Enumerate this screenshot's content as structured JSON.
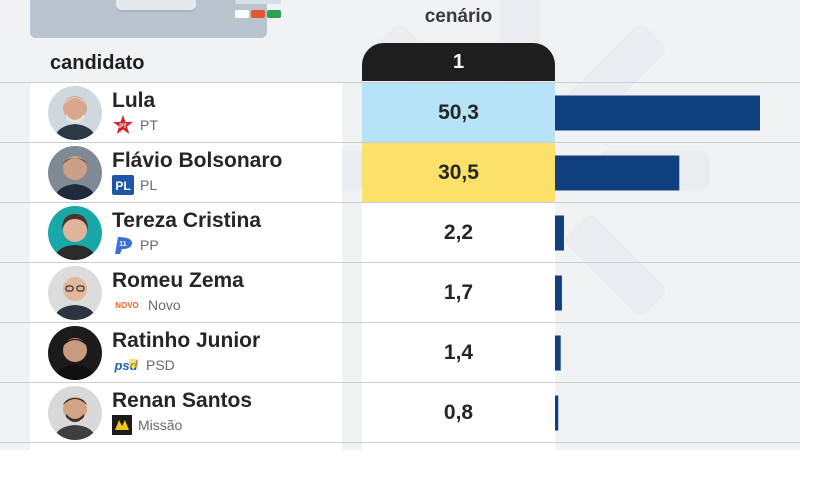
{
  "header": {
    "scenario_title": "cenário",
    "scenario_number": "1",
    "candidate_header": "candidato"
  },
  "colors": {
    "bar": "#0f3f7e",
    "leader_highlight": "#b6e3f8",
    "second_highlight": "#fbe06a",
    "badge": "#1e1e1e"
  },
  "rows": [
    {
      "name": "Lula",
      "party": "PT",
      "party_logo": "pt-star-logo",
      "value": "50,3"
    },
    {
      "name": "Flávio Bolsonaro",
      "party": "PL",
      "party_logo": "pl-logo",
      "value": "30,5"
    },
    {
      "name": "Tereza Cristina",
      "party": "PP",
      "party_logo": "pp-logo",
      "value": "2,2"
    },
    {
      "name": "Romeu Zema",
      "party": "Novo",
      "party_logo": "novo-logo",
      "value": "1,7"
    },
    {
      "name": "Ratinho Junior",
      "party": "PSD",
      "party_logo": "psd-logo",
      "value": "1,4"
    },
    {
      "name": "Renan Santos",
      "party": "Missão",
      "party_logo": "missao-logo",
      "value": "0,8"
    }
  ],
  "chart_data": {
    "type": "bar",
    "orientation": "horizontal",
    "categories": [
      "Lula",
      "Flávio Bolsonaro",
      "Tereza Cristina",
      "Romeu Zema",
      "Ratinho Junior",
      "Renan Santos"
    ],
    "series": [
      {
        "name": "1",
        "values": [
          50.3,
          30.5,
          2.2,
          1.7,
          1.4,
          0.8
        ]
      }
    ],
    "grid": true
  }
}
